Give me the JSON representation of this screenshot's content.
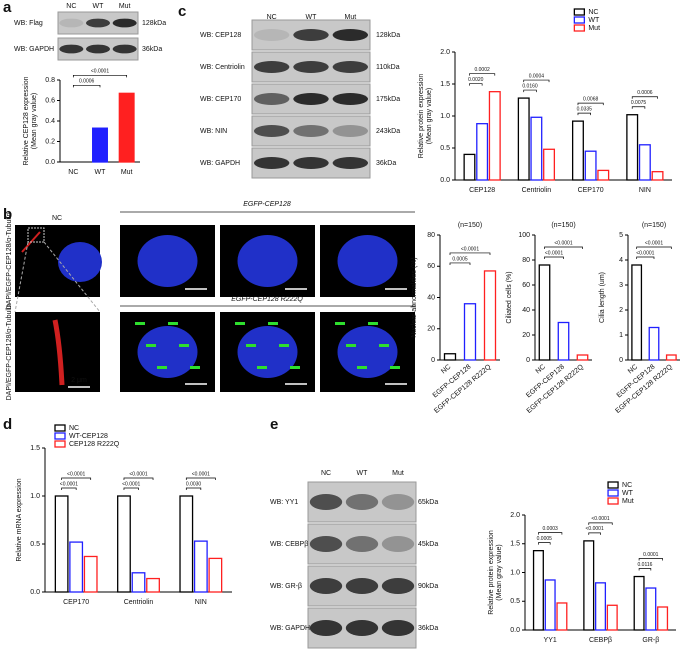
{
  "panels": [
    "a",
    "b",
    "c",
    "d",
    "e"
  ],
  "blots": {
    "a": {
      "lanes": [
        "NC",
        "WT",
        "Mut"
      ],
      "rows": [
        {
          "label": "WB: Flag",
          "size": "128kDa"
        },
        {
          "label": "WB: GAPDH",
          "size": "36kDa"
        }
      ]
    },
    "c": {
      "lanes": [
        "NC",
        "WT",
        "Mut"
      ],
      "rows": [
        {
          "label": "WB: CEP128",
          "size": "128kDa"
        },
        {
          "label": "WB: Centriolin",
          "size": "110kDa"
        },
        {
          "label": "WB: CEP170",
          "size": "175kDa"
        },
        {
          "label": "WB: NIN",
          "size": "243kDa"
        },
        {
          "label": "WB: GAPDH",
          "size": "36kDa"
        }
      ]
    },
    "e": {
      "lanes": [
        "NC",
        "WT",
        "Mut"
      ],
      "rows": [
        {
          "label": "WB: YY1",
          "size": "65kDa"
        },
        {
          "label": "WB: CEBPβ",
          "size": "45kDa"
        },
        {
          "label": "WB: GR-β",
          "size": "90kDa"
        },
        {
          "label": "WB: GAPDH",
          "size": "36kDa"
        }
      ]
    }
  },
  "micrographs": {
    "top_left": "NC",
    "top_group": "EGFP-CEP128",
    "bottom_group": "EGFP-CEP128 R222Q",
    "stain": "DAPI/EGFP-CEP128/α-Tubulin",
    "scale_bar": "2 μm"
  },
  "chart_data": [
    {
      "type": "bar",
      "ylabel": [
        "Relative CEP128 expression",
        "(Mean gray value)"
      ],
      "categories": [
        "NC",
        "WT",
        "Mut"
      ],
      "values": [
        0,
        0.33,
        0.67
      ],
      "colors": [
        "#000000",
        "#2020ff",
        "#ff2020"
      ],
      "ylim": [
        0,
        0.8
      ],
      "yticks": [
        {
          "value": 0,
          "label": "0.0"
        },
        {
          "value": 0.2,
          "label": "0.2"
        },
        {
          "value": 0.4,
          "label": "0.4"
        },
        {
          "value": 0.6,
          "label": "0.6"
        },
        {
          "value": 0.8,
          "label": "0.8"
        }
      ],
      "annotations": [
        "0.0006",
        "<0.0001"
      ]
    },
    {
      "type": "bar",
      "ylabel": [
        "Relative protein expression",
        "(Mean gray value)"
      ],
      "categories": [
        "CEP128",
        "Centriolin",
        "CEP170",
        "NIN"
      ],
      "series": [
        {
          "name": "NC",
          "color": "#000000",
          "values": [
            0.4,
            1.28,
            0.92,
            1.02
          ]
        },
        {
          "name": "WT",
          "color": "#2020ff",
          "values": [
            0.88,
            0.98,
            0.45,
            0.55
          ]
        },
        {
          "name": "Mut",
          "color": "#ff2020",
          "values": [
            1.38,
            0.48,
            0.15,
            0.13
          ]
        }
      ],
      "ylim": [
        0,
        2
      ],
      "yticks": [
        {
          "value": 0,
          "label": "0.0"
        },
        {
          "value": 0.5,
          "label": "0.5"
        },
        {
          "value": 1,
          "label": "1.0"
        },
        {
          "value": 1.5,
          "label": "1.5"
        },
        {
          "value": 2,
          "label": "2.0"
        }
      ],
      "annotations": [
        "0.0020",
        "0.0002",
        "0.0160",
        "0.0004",
        "0.0335",
        "0.0068",
        "0.0075",
        "0.0006"
      ]
    },
    {
      "type": "bar",
      "title": "(n=150)",
      "ylabel": [
        "Nuclear abnormalities (%)"
      ],
      "categories": [
        "NC",
        "EGFP-CEP128",
        "EGFP-CEP128 R222Q"
      ],
      "values": [
        4,
        36,
        57
      ],
      "colors": [
        "#000000",
        "#2020ff",
        "#ff2020"
      ],
      "ylim": [
        0,
        80
      ],
      "yticks": [
        0,
        20,
        40,
        60,
        80
      ],
      "annotations": [
        "0.0005",
        "<0.0001"
      ]
    },
    {
      "type": "bar",
      "title": "(n=150)",
      "ylabel": [
        "Ciliated cells (%)"
      ],
      "categories": [
        "NC",
        "EGFP-CEP128",
        "EGFP-CEP128 R222Q"
      ],
      "values": [
        76,
        30,
        4
      ],
      "colors": [
        "#000000",
        "#2020ff",
        "#ff2020"
      ],
      "ylim": [
        0,
        100
      ],
      "yticks": [
        0,
        20,
        40,
        60,
        80,
        100
      ],
      "annotations": [
        "<0.0001",
        "<0.0001"
      ]
    },
    {
      "type": "bar",
      "title": "(n=150)",
      "ylabel": [
        "Cilia length (um)"
      ],
      "categories": [
        "NC",
        "EGFP-CEP128",
        "EGFP-CEP128 R222Q"
      ],
      "values": [
        3.8,
        1.3,
        0.2
      ],
      "colors": [
        "#000000",
        "#2020ff",
        "#ff2020"
      ],
      "ylim": [
        0,
        5
      ],
      "yticks": [
        0,
        1,
        2,
        3,
        4,
        5
      ],
      "annotations": [
        "<0.0001",
        "<0.0001"
      ]
    },
    {
      "type": "bar",
      "ylabel": [
        "Relative mRNA expression"
      ],
      "categories": [
        "CEP170",
        "Centriolin",
        "NIN"
      ],
      "series": [
        {
          "name": "NC",
          "color": "#000000",
          "values": [
            1,
            1,
            1
          ]
        },
        {
          "name": "WT-CEP128",
          "color": "#2020ff",
          "values": [
            0.52,
            0.2,
            0.53
          ]
        },
        {
          "name": "CEP128 R222Q",
          "color": "#ff2020",
          "values": [
            0.37,
            0.14,
            0.35
          ]
        }
      ],
      "ylim": [
        0,
        1.5
      ],
      "yticks": [
        {
          "value": 0,
          "label": "0.0"
        },
        {
          "value": 0.5,
          "label": "0.5"
        },
        {
          "value": 1,
          "label": "1.0"
        },
        {
          "value": 1.5,
          "label": "1.5"
        }
      ],
      "annotations": [
        "<0.0001",
        "<0.0001",
        "<0.0001",
        "<0.0001",
        "0.0030",
        "<0.0001"
      ]
    },
    {
      "type": "bar",
      "ylabel": [
        "Relative protein expression",
        "(Mean gray value)"
      ],
      "categories": [
        "YY1",
        "CEBPβ",
        "GR-β"
      ],
      "series": [
        {
          "name": "NC",
          "color": "#000000",
          "values": [
            1.38,
            1.55,
            0.93
          ]
        },
        {
          "name": "WT",
          "color": "#2020ff",
          "values": [
            0.87,
            0.82,
            0.73
          ]
        },
        {
          "name": "Mut",
          "color": "#ff2020",
          "values": [
            0.47,
            0.43,
            0.4
          ]
        }
      ],
      "ylim": [
        0,
        2
      ],
      "yticks": [
        {
          "value": 0,
          "label": "0.0"
        },
        {
          "value": 0.5,
          "label": "0.5"
        },
        {
          "value": 1,
          "label": "1.0"
        },
        {
          "value": 1.5,
          "label": "1.5"
        },
        {
          "value": 2,
          "label": "2.0"
        }
      ],
      "annotations": [
        "0.0005",
        "0.0003",
        "<0.0001",
        "<0.0001",
        "0.0116",
        "0.0001"
      ]
    }
  ]
}
